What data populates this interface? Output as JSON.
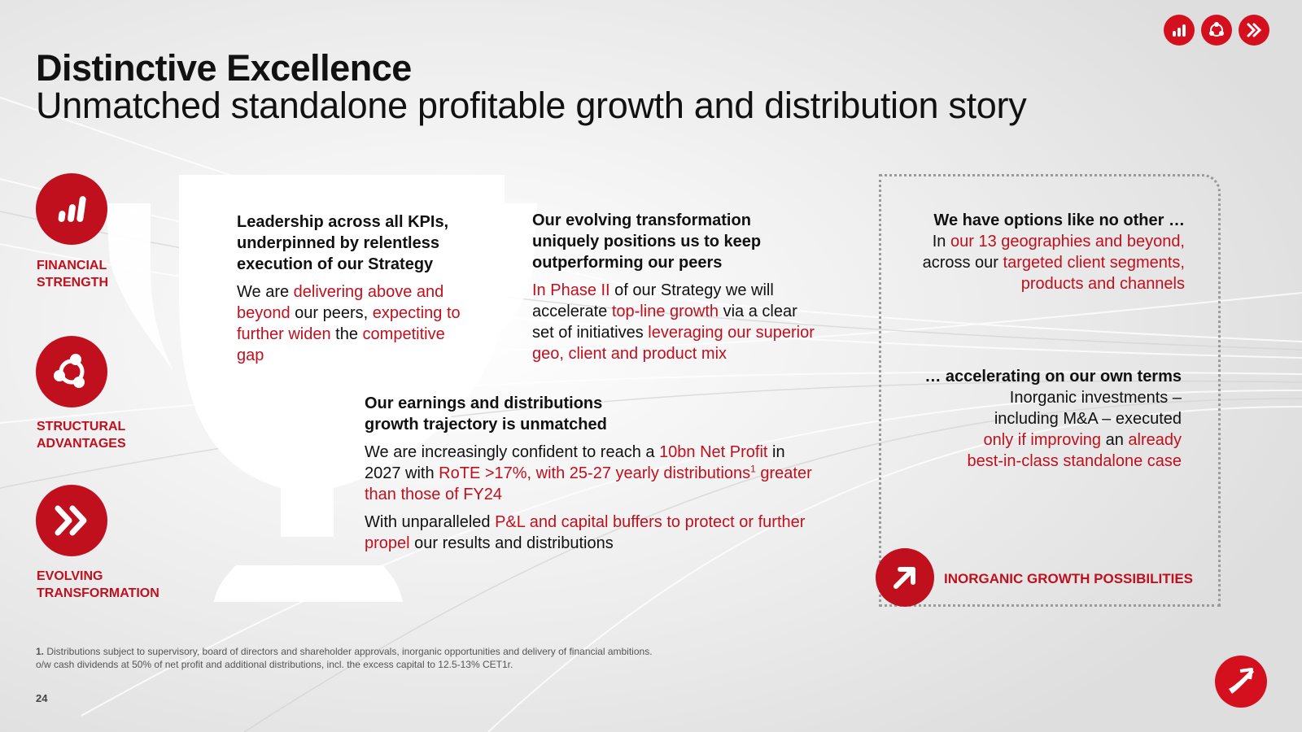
{
  "header": {
    "title": "Distinctive Excellence",
    "subtitle": "Unmatched standalone profitable growth and distribution story"
  },
  "top_icons": [
    {
      "name": "chart-bars-icon"
    },
    {
      "name": "network-icon"
    },
    {
      "name": "double-chevron-icon"
    }
  ],
  "pillars": [
    {
      "icon": "chart-bars-icon",
      "label_line1": "FINANCIAL",
      "label_line2": "STRENGTH"
    },
    {
      "icon": "network-icon",
      "label_line1": "STRUCTURAL",
      "label_line2": "ADVANTAGES"
    },
    {
      "icon": "double-chevron-icon",
      "label_line1": "EVOLVING",
      "label_line2": "TRANSFORMATION"
    }
  ],
  "block_leadership": {
    "heading": "Leadership across all KPIs, underpinned by relentless execution of our Strategy",
    "p1": "We are ",
    "p1_red": "delivering above and beyond",
    "p2": " our peers, ",
    "p2_red": "expecting to further widen",
    "p3": " the ",
    "p3_red": "competitive gap"
  },
  "block_transformation": {
    "heading": "Our evolving transformation uniquely positions us to keep outperforming our peers",
    "r1": "In Phase II",
    "t1": " of our Strategy we will accelerate ",
    "r2": "top-line growth",
    "t2": " via a clear set of initiatives ",
    "r3": "leveraging our superior geo, client and product mix"
  },
  "block_earnings": {
    "heading": "Our earnings and distributions growth trajectory is unmatched",
    "t1": "We are increasingly confident to reach a ",
    "r1": "10bn Net Profit",
    "t2": " in 2027 with ",
    "r2": "RoTE >17%, with 25-27 yearly distributions",
    "sup": "1",
    "r3": " greater than those of FY24",
    "t3": "With unparalleled ",
    "r4": "P&L and capital buffers to protect or further propel",
    "t4": " our results and distributions"
  },
  "block_options": {
    "heading": "We have options like no other …",
    "t1": "In ",
    "r1": "our 13 geographies and beyond,",
    "t2": " across our ",
    "r2": "targeted client segments, products and channels"
  },
  "block_accelerating": {
    "heading": "… accelerating on our own terms",
    "t1": "Inorganic investments – including M&A – executed ",
    "r1": "only if improving",
    "t2": " an ",
    "r2": "already best-in-class standalone case"
  },
  "inorganic": {
    "icon": "arrow-up-right-icon",
    "label": "INORGANIC GROWTH POSSIBILITIES"
  },
  "footnote": {
    "number": "1.",
    "line1": " Distributions subject to supervisory, board of directors and shareholder approvals, inorganic opportunities and delivery of financial ambitions.",
    "line2": "o/w cash dividends at 50% of net profit and additional distributions, incl. the excess capital to 12.5-13% CET1r."
  },
  "page_number": "24",
  "logo": {
    "icon": "bank-logo-icon"
  }
}
